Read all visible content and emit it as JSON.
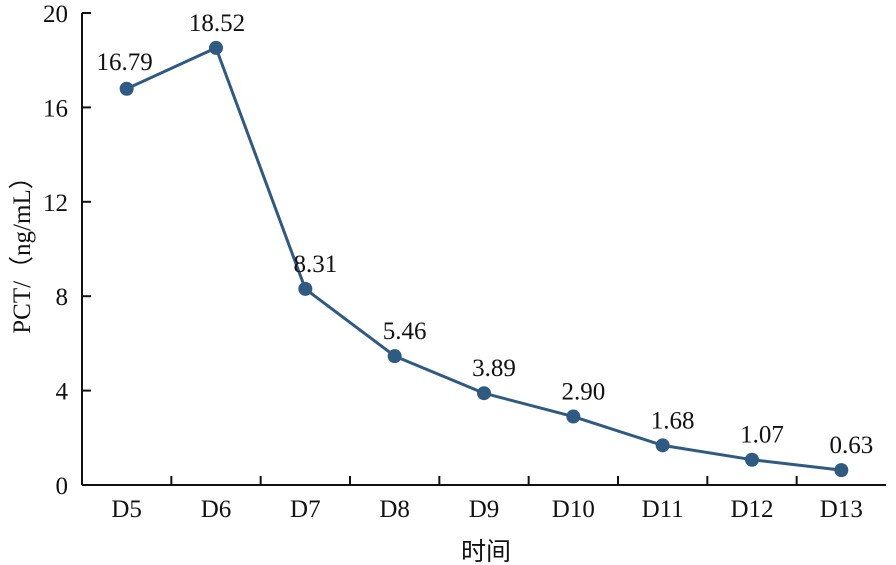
{
  "chart_data": {
    "type": "line",
    "categories": [
      "D5",
      "D6",
      "D7",
      "D8",
      "D9",
      "D10",
      "D11",
      "D12",
      "D13"
    ],
    "series": [
      {
        "values": [
          16.79,
          18.52,
          8.31,
          5.46,
          3.89,
          2.9,
          1.68,
          1.07,
          0.63
        ],
        "labels": [
          "16.79",
          "18.52",
          "8.31",
          "5.46",
          "3.89",
          "2.90",
          "1.68",
          "1.07",
          "0.63"
        ],
        "color": "#2f5a82"
      }
    ],
    "xlabel": "时间",
    "ylabel": "PCT/（ng/mL）",
    "ylim": [
      0,
      20
    ],
    "yticks": [
      0,
      4,
      8,
      12,
      16,
      20
    ],
    "ytick_labels": [
      "0",
      "4",
      "8",
      "12",
      "16",
      "20"
    ],
    "grid": false,
    "legend": "none"
  }
}
